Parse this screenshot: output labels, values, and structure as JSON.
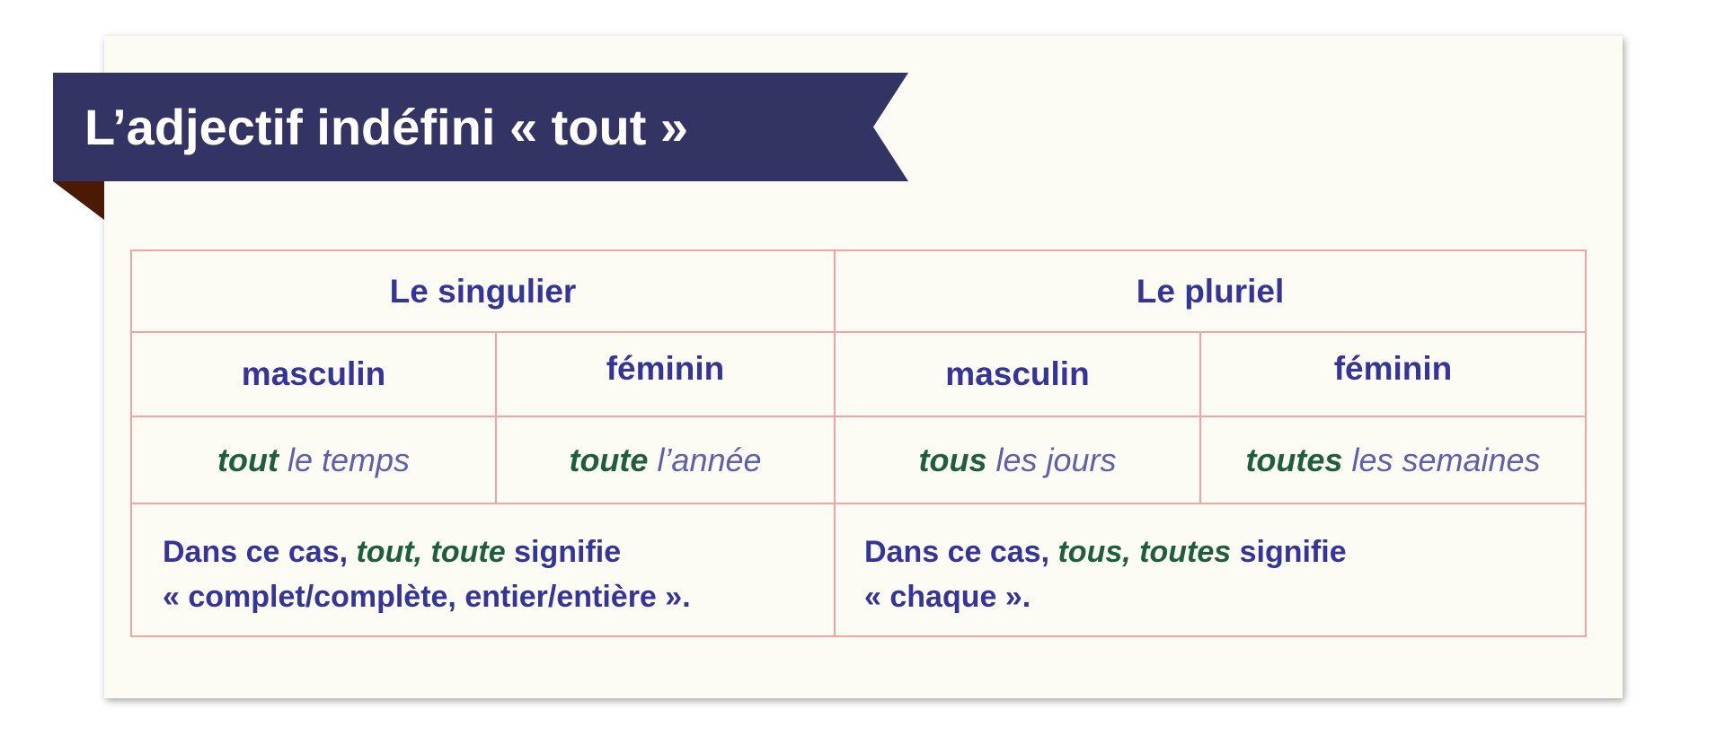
{
  "title": "L’adjectif indéfini « tout »",
  "table": {
    "headers": {
      "singular": "Le singulier",
      "plural": "Le pluriel"
    },
    "subheaders": [
      "masculin",
      "féminin",
      "masculin",
      "féminin"
    ],
    "examples": [
      {
        "adj": "tout",
        "rest": " le temps"
      },
      {
        "adj": "toute",
        "rest": " l’année"
      },
      {
        "adj": "tous",
        "rest": " les jours"
      },
      {
        "adj": "toutes",
        "rest": " les semaines"
      }
    ],
    "notes": {
      "singular": {
        "pre": "Dans ce cas, ",
        "adj": "tout, toute",
        "post": " signifie",
        "line2": "« complet/complète, entier/entière »."
      },
      "plural": {
        "pre": "Dans ce cas, ",
        "adj": "tous, toutes",
        "post": " signifie",
        "line2": "« chaque »."
      }
    }
  },
  "colors": {
    "banner": "#343464",
    "fold": "#4a1a05",
    "text": "#34349a",
    "adjective": "#1e5e3e",
    "article": "#5f5fae",
    "border": "#f3a3a3"
  }
}
